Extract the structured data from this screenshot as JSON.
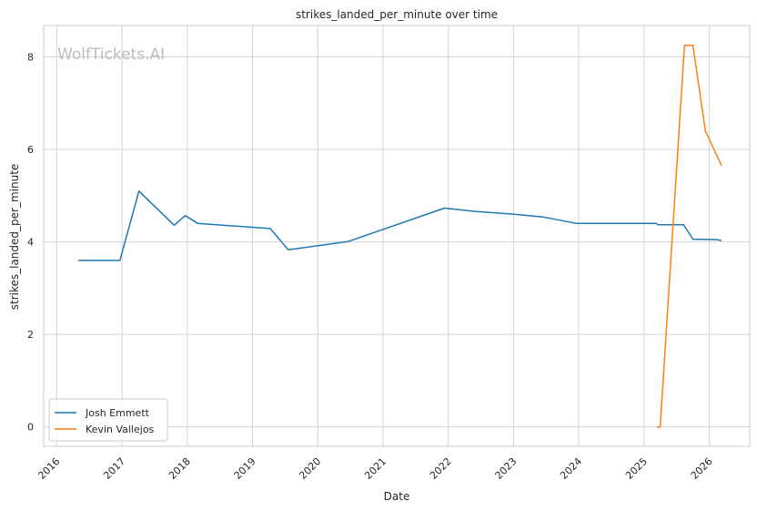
{
  "chart_data": {
    "type": "line",
    "title": "strikes_landed_per_minute over time",
    "xlabel": "Date",
    "ylabel": "strikes_landed_per_minute",
    "watermark": "WolfTickets.AI",
    "grid": true,
    "legend_position": "bottom-left",
    "x_ticks": [
      "2016",
      "2017",
      "2018",
      "2019",
      "2020",
      "2021",
      "2022",
      "2023",
      "2024",
      "2025",
      "2026"
    ],
    "y_ticks": [
      0,
      2,
      4,
      6,
      8
    ],
    "xlim": [
      "2015-10-20",
      "2026-08-15"
    ],
    "ylim": [
      -0.42,
      8.68
    ],
    "series": [
      {
        "name": "Josh Emmett",
        "color": "#1f77b4",
        "points": [
          [
            "2016-05-01",
            3.6
          ],
          [
            "2016-12-20",
            3.6
          ],
          [
            "2017-04-05",
            5.1
          ],
          [
            "2017-10-20",
            4.36
          ],
          [
            "2017-12-20",
            4.57
          ],
          [
            "2018-03-01",
            4.4
          ],
          [
            "2019-04-10",
            4.29
          ],
          [
            "2019-07-20",
            3.83
          ],
          [
            "2020-06-20",
            4.01
          ],
          [
            "2021-12-10",
            4.73
          ],
          [
            "2022-06-01",
            4.66
          ],
          [
            "2023-01-01",
            4.6
          ],
          [
            "2023-06-15",
            4.54
          ],
          [
            "2023-12-20",
            4.4
          ],
          [
            "2025-03-10",
            4.4
          ],
          [
            "2025-03-20",
            4.37
          ],
          [
            "2025-08-10",
            4.37
          ],
          [
            "2025-10-01",
            4.06
          ],
          [
            "2026-02-15",
            4.05
          ],
          [
            "2026-03-10",
            4.03
          ]
        ]
      },
      {
        "name": "Kevin Vallejos",
        "color": "#ff7f0e",
        "points": [
          [
            "2025-03-15",
            0.0
          ],
          [
            "2025-04-01",
            0.0
          ],
          [
            "2025-08-15",
            8.25
          ],
          [
            "2025-10-01",
            8.25
          ],
          [
            "2025-12-10",
            6.4
          ],
          [
            "2026-03-10",
            5.65
          ]
        ]
      }
    ]
  }
}
